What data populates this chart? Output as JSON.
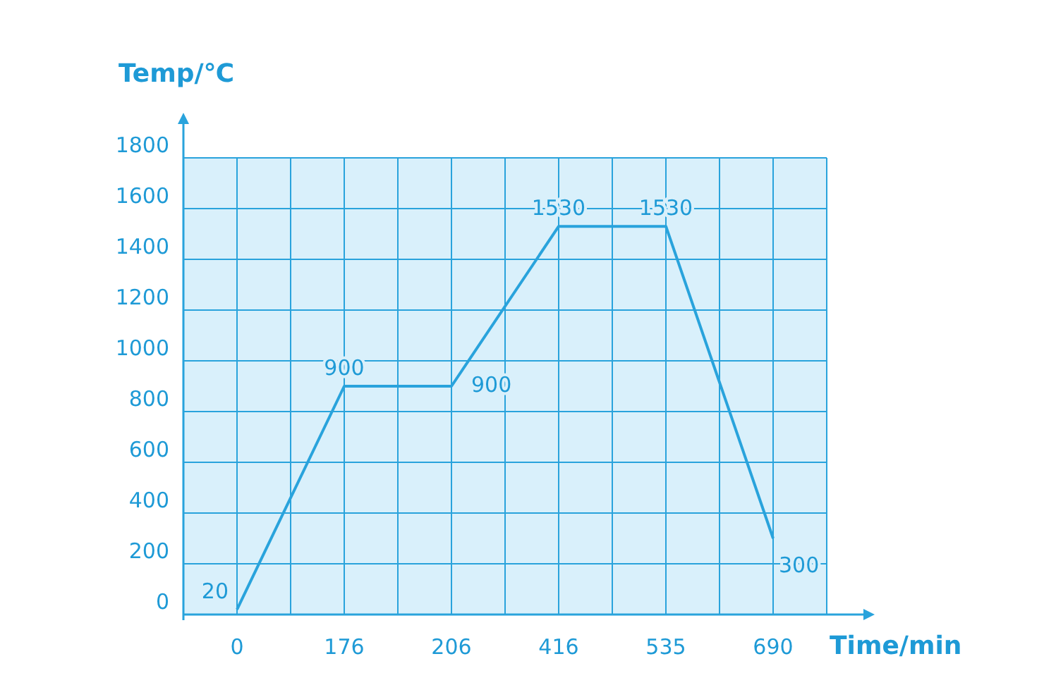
{
  "chart_data": {
    "type": "line",
    "xlabel": "Time/min",
    "ylabel": "Temp/℃",
    "categories": [
      "0",
      "176",
      "206",
      "416",
      "535",
      "690"
    ],
    "series": [
      {
        "color": "#29a3dc",
        "values": [
          20,
          900,
          900,
          1530,
          1530,
          300
        ]
      }
    ],
    "ylim": [
      0,
      1800
    ],
    "yticks": [
      0,
      200,
      400,
      600,
      800,
      1000,
      1200,
      1400,
      1600,
      1800
    ],
    "grid": true,
    "data_labels": true,
    "marker": "none",
    "line_style": "solid"
  }
}
